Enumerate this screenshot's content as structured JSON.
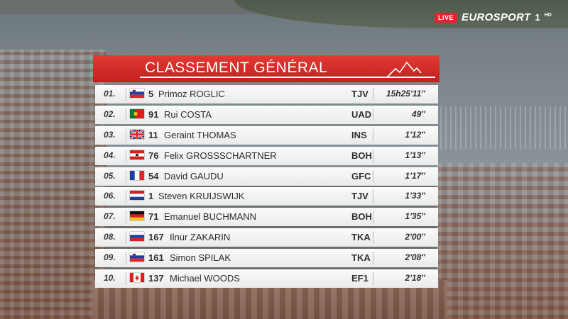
{
  "broadcaster": {
    "live_label": "LIVE",
    "brand": "EUROSPORT",
    "channel": "1",
    "quality": "HD"
  },
  "standings": {
    "title": "CLASSEMENT GÉNÉRAL",
    "rows": [
      {
        "pos": "01.",
        "flag": "SI",
        "bib": "5",
        "name": "Primoz ROGLIC",
        "team": "TJV",
        "time": "15h25'11''"
      },
      {
        "pos": "02.",
        "flag": "PT",
        "bib": "91",
        "name": "Rui COSTA",
        "team": "UAD",
        "time": "49''"
      },
      {
        "pos": "03.",
        "flag": "GB",
        "bib": "11",
        "name": "Geraint THOMAS",
        "team": "INS",
        "time": "1'12''"
      },
      {
        "pos": "04.",
        "flag": "AT",
        "bib": "76",
        "name": "Felix GROSSSCHARTNER",
        "team": "BOH",
        "time": "1'13''"
      },
      {
        "pos": "05.",
        "flag": "FR",
        "bib": "54",
        "name": "David GAUDU",
        "team": "GFC",
        "time": "1'17''"
      },
      {
        "pos": "06.",
        "flag": "NL",
        "bib": "1",
        "name": "Steven KRUIJSWIJK",
        "team": "TJV",
        "time": "1'33''"
      },
      {
        "pos": "07.",
        "flag": "DE",
        "bib": "71",
        "name": "Emanuel BUCHMANN",
        "team": "BOH",
        "time": "1'35''"
      },
      {
        "pos": "08.",
        "flag": "RU",
        "bib": "167",
        "name": "Ilnur ZAKARIN",
        "team": "TKA",
        "time": "2'00''"
      },
      {
        "pos": "09.",
        "flag": "SI",
        "bib": "161",
        "name": "Simon SPILAK",
        "team": "TKA",
        "time": "2'08''"
      },
      {
        "pos": "10.",
        "flag": "CA",
        "bib": "137",
        "name": "Michael WOODS",
        "team": "EF1",
        "time": "2'18''"
      }
    ]
  },
  "colors": {
    "header_red": "#d2302b",
    "row_bg": "#f3f3f3",
    "live_red": "#e0262d"
  }
}
